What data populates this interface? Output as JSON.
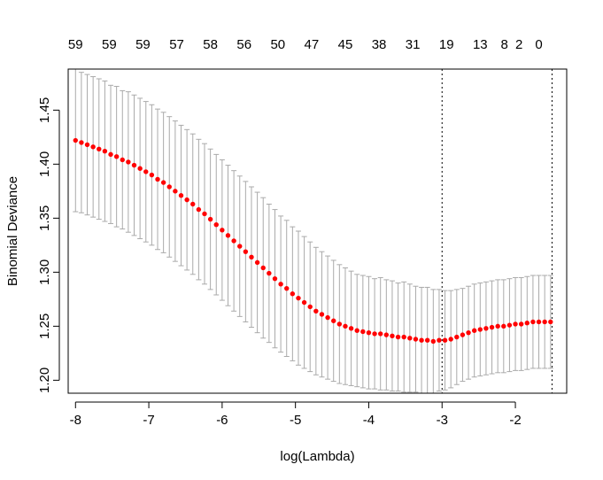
{
  "chart_data": {
    "type": "scatter",
    "title": "",
    "xlabel": "log(Lambda)",
    "ylabel": "Binomial Deviance",
    "xlim": [
      -8.1,
      -1.3
    ],
    "ylim": [
      1.188,
      1.488
    ],
    "x_ticks": [
      -8,
      -7,
      -6,
      -5,
      -4,
      -3,
      -2
    ],
    "x_tick_labels": [
      "-8",
      "-7",
      "-6",
      "-5",
      "-4",
      "-3",
      "-2"
    ],
    "y_ticks": [
      1.2,
      1.25,
      1.3,
      1.35,
      1.4,
      1.45
    ],
    "y_tick_labels": [
      "1.20",
      "1.25",
      "1.30",
      "1.35",
      "1.40",
      "1.45"
    ],
    "top_axis": {
      "x": [
        -8.0,
        -7.54,
        -7.08,
        -6.62,
        -6.16,
        -5.7,
        -5.24,
        -4.78,
        -4.32,
        -3.86,
        -3.4,
        -2.94,
        -2.48,
        -2.15,
        -1.95,
        -1.68
      ],
      "labels": [
        "59",
        "59",
        "59",
        "57",
        "58",
        "56",
        "50",
        "47",
        "45",
        "38",
        "31",
        "19",
        "13",
        "8",
        "2",
        "0"
      ]
    },
    "reference_lines_x": [
      -3.0,
      -1.5
    ],
    "series": [
      {
        "x": [
          -8.0,
          -7.92,
          -7.84,
          -7.76,
          -7.68,
          -7.6,
          -7.52,
          -7.44,
          -7.36,
          -7.28,
          -7.2,
          -7.12,
          -7.04,
          -6.96,
          -6.88,
          -6.8,
          -6.72,
          -6.64,
          -6.56,
          -6.48,
          -6.4,
          -6.32,
          -6.24,
          -6.16,
          -6.08,
          -6.0,
          -5.92,
          -5.84,
          -5.76,
          -5.68,
          -5.6,
          -5.52,
          -5.44,
          -5.36,
          -5.28,
          -5.2,
          -5.12,
          -5.04,
          -4.96,
          -4.88,
          -4.8,
          -4.72,
          -4.64,
          -4.56,
          -4.48,
          -4.4,
          -4.32,
          -4.24,
          -4.16,
          -4.08,
          -4.0,
          -3.92,
          -3.84,
          -3.76,
          -3.68,
          -3.6,
          -3.52,
          -3.44,
          -3.36,
          -3.28,
          -3.2,
          -3.12,
          -3.04,
          -2.96,
          -2.88,
          -2.8,
          -2.72,
          -2.64,
          -2.56,
          -2.48,
          -2.4,
          -2.32,
          -2.24,
          -2.16,
          -2.08,
          -2.0,
          -1.92,
          -1.84,
          -1.76,
          -1.68,
          -1.6,
          -1.52
        ],
        "values": [
          1.422,
          1.42,
          1.418,
          1.416,
          1.414,
          1.412,
          1.409,
          1.407,
          1.404,
          1.402,
          1.399,
          1.396,
          1.393,
          1.39,
          1.386,
          1.383,
          1.379,
          1.375,
          1.371,
          1.367,
          1.363,
          1.358,
          1.354,
          1.349,
          1.344,
          1.339,
          1.334,
          1.329,
          1.324,
          1.319,
          1.314,
          1.309,
          1.304,
          1.299,
          1.294,
          1.289,
          1.285,
          1.28,
          1.276,
          1.272,
          1.268,
          1.264,
          1.261,
          1.258,
          1.255,
          1.252,
          1.25,
          1.248,
          1.246,
          1.245,
          1.244,
          1.243,
          1.243,
          1.242,
          1.241,
          1.24,
          1.24,
          1.239,
          1.238,
          1.237,
          1.237,
          1.236,
          1.237,
          1.237,
          1.238,
          1.24,
          1.242,
          1.244,
          1.246,
          1.247,
          1.248,
          1.249,
          1.25,
          1.25,
          1.251,
          1.252,
          1.252,
          1.253,
          1.254,
          1.254,
          1.254,
          1.254
        ],
        "lower": [
          1.356,
          1.355,
          1.353,
          1.351,
          1.349,
          1.347,
          1.345,
          1.342,
          1.34,
          1.337,
          1.334,
          1.331,
          1.328,
          1.325,
          1.321,
          1.318,
          1.314,
          1.31,
          1.306,
          1.302,
          1.298,
          1.293,
          1.289,
          1.284,
          1.279,
          1.274,
          1.269,
          1.264,
          1.259,
          1.254,
          1.249,
          1.244,
          1.239,
          1.235,
          1.23,
          1.226,
          1.222,
          1.218,
          1.214,
          1.211,
          1.208,
          1.205,
          1.203,
          1.201,
          1.199,
          1.197,
          1.196,
          1.195,
          1.194,
          1.193,
          1.192,
          1.192,
          1.191,
          1.191,
          1.19,
          1.19,
          1.189,
          1.189,
          1.189,
          1.188,
          1.188,
          1.188,
          1.19,
          1.191,
          1.193,
          1.196,
          1.199,
          1.201,
          1.203,
          1.204,
          1.205,
          1.206,
          1.207,
          1.207,
          1.208,
          1.209,
          1.209,
          1.21,
          1.211,
          1.211,
          1.211,
          1.211
        ],
        "upper": [
          1.488,
          1.485,
          1.483,
          1.481,
          1.479,
          1.477,
          1.473,
          1.472,
          1.468,
          1.467,
          1.464,
          1.461,
          1.458,
          1.455,
          1.451,
          1.448,
          1.444,
          1.44,
          1.436,
          1.432,
          1.428,
          1.423,
          1.419,
          1.414,
          1.409,
          1.404,
          1.399,
          1.394,
          1.389,
          1.384,
          1.379,
          1.374,
          1.369,
          1.363,
          1.358,
          1.352,
          1.348,
          1.342,
          1.338,
          1.333,
          1.328,
          1.323,
          1.319,
          1.315,
          1.311,
          1.307,
          1.304,
          1.301,
          1.298,
          1.297,
          1.296,
          1.294,
          1.295,
          1.293,
          1.292,
          1.29,
          1.291,
          1.289,
          1.287,
          1.286,
          1.286,
          1.284,
          1.284,
          1.283,
          1.283,
          1.284,
          1.285,
          1.287,
          1.289,
          1.29,
          1.291,
          1.292,
          1.293,
          1.293,
          1.294,
          1.295,
          1.295,
          1.296,
          1.297,
          1.297,
          1.297,
          1.297
        ]
      }
    ],
    "colors": {
      "point": "#ff0000",
      "errorbar": "#aaaaaa",
      "axis": "#000000"
    },
    "grid": false,
    "legend": "none"
  }
}
